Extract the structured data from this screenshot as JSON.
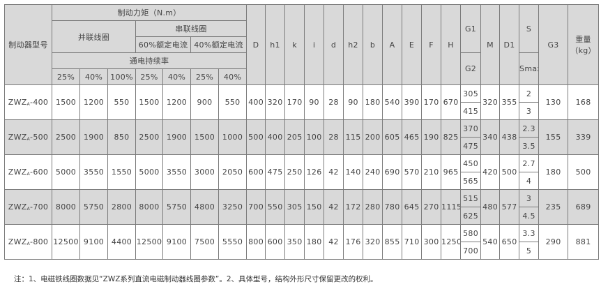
{
  "header": {
    "model": "制动器型号",
    "torque": "制动力矩（N.m）",
    "parallel": "并联线圈",
    "series": "串联线圈",
    "series_60": "60%额定电流",
    "series_40": "40%额定电流",
    "duty": "通电持续率",
    "duty_cols": [
      "25%",
      "40%",
      "100%",
      "25%",
      "40%",
      "25%",
      "40%"
    ],
    "dims": [
      "D",
      "h1",
      "k",
      "i",
      "d",
      "h2",
      "b",
      "A",
      "E",
      "F",
      "H"
    ],
    "g1": "G1",
    "g2": "G2",
    "m": "M",
    "d1": "D1",
    "s": "S",
    "smax": "Smax",
    "g3": "G3",
    "weight": "重量（kg）"
  },
  "rows": [
    {
      "model": "ZWZ",
      "sub": "A",
      "suffix": "-400",
      "torque": [
        "1500",
        "1200",
        "550",
        "1500",
        "1200",
        "900",
        "550"
      ],
      "dims": [
        "400",
        "320",
        "170",
        "90",
        "28",
        "90",
        "180",
        "540",
        "390",
        "170",
        "670"
      ],
      "g1": "305",
      "g2": "415",
      "m": "320",
      "d1": "355",
      "s": "2",
      "smax": "3",
      "g3": "130",
      "weight": "168"
    },
    {
      "model": "ZWZ",
      "sub": "A",
      "suffix": "-500",
      "torque": [
        "2500",
        "1900",
        "850",
        "2500",
        "1900",
        "1500",
        "1000"
      ],
      "dims": [
        "500",
        "400",
        "205",
        "100",
        "28",
        "115",
        "200",
        "605",
        "465",
        "190",
        "825"
      ],
      "g1": "370",
      "g2": "475",
      "m": "340",
      "d1": "438",
      "s": "2.3",
      "smax": "3.5",
      "g3": "155",
      "weight": "339"
    },
    {
      "model": "ZWZ",
      "sub": "A",
      "suffix": "-600",
      "torque": [
        "5000",
        "3550",
        "1550",
        "5000",
        "3550",
        "3000",
        "2050"
      ],
      "dims": [
        "600",
        "475",
        "250",
        "126",
        "42",
        "140",
        "240",
        "690",
        "570",
        "210",
        "965"
      ],
      "g1": "450",
      "g2": "565",
      "m": "420",
      "d1": "500",
      "s": "2.7",
      "smax": "4",
      "g3": "180",
      "weight": "500"
    },
    {
      "model": "ZWZ",
      "sub": "A",
      "suffix": "-700",
      "torque": [
        "8000",
        "5750",
        "2800",
        "8000",
        "5750",
        "4800",
        "3250"
      ],
      "dims": [
        "700",
        "550",
        "305",
        "150",
        "42",
        "172",
        "280",
        "780",
        "645",
        "270",
        "1115"
      ],
      "g1": "515",
      "g2": "625",
      "m": "480",
      "d1": "577",
      "s": "3",
      "smax": "4.5",
      "g3": "235",
      "weight": "689"
    },
    {
      "model": "ZWZ",
      "sub": "A",
      "suffix": "-800",
      "torque": [
        "12500",
        "9100",
        "4400",
        "12500",
        "9100",
        "7500",
        "5550"
      ],
      "dims": [
        "800",
        "600",
        "350",
        "180",
        "42",
        "176",
        "320",
        "855",
        "710",
        "300",
        "1250"
      ],
      "g1": "580",
      "g2": "700",
      "m": "540",
      "d1": "650",
      "s": "3.3",
      "smax": "5",
      "g3": "290",
      "weight": "881"
    }
  ],
  "note": "注：1、电磁铁线圈数据见“ZWZ系列直流电磁制动器线圈参数”。2、具体型号，结构外形尺寸保留更改的权利。"
}
